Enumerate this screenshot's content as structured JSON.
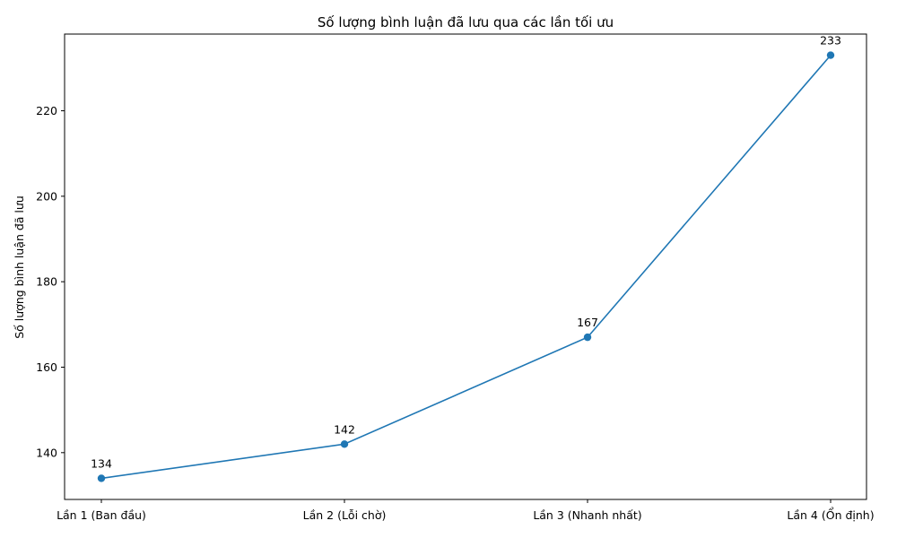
{
  "chart_data": {
    "type": "line",
    "title": "Số lượng bình luận đã lưu qua các lần tối ưu",
    "xlabel": "",
    "ylabel": "Số lượng bình luận đã lưu",
    "categories": [
      "Lần 1 (Ban đầu)",
      "Lần 2 (Lỗi chờ)",
      "Lần 3 (Nhanh nhất)",
      "Lần 4 (Ổn định)"
    ],
    "series": [
      {
        "values": [
          134,
          142,
          167,
          233
        ],
        "color": "#1f77b4"
      }
    ],
    "data_labels": [
      "134",
      "142",
      "167",
      "233"
    ],
    "y_ticks": [
      140,
      160,
      180,
      200,
      220
    ],
    "ylim": [
      129.05,
      237.95
    ],
    "grid": false,
    "legend": "none"
  }
}
